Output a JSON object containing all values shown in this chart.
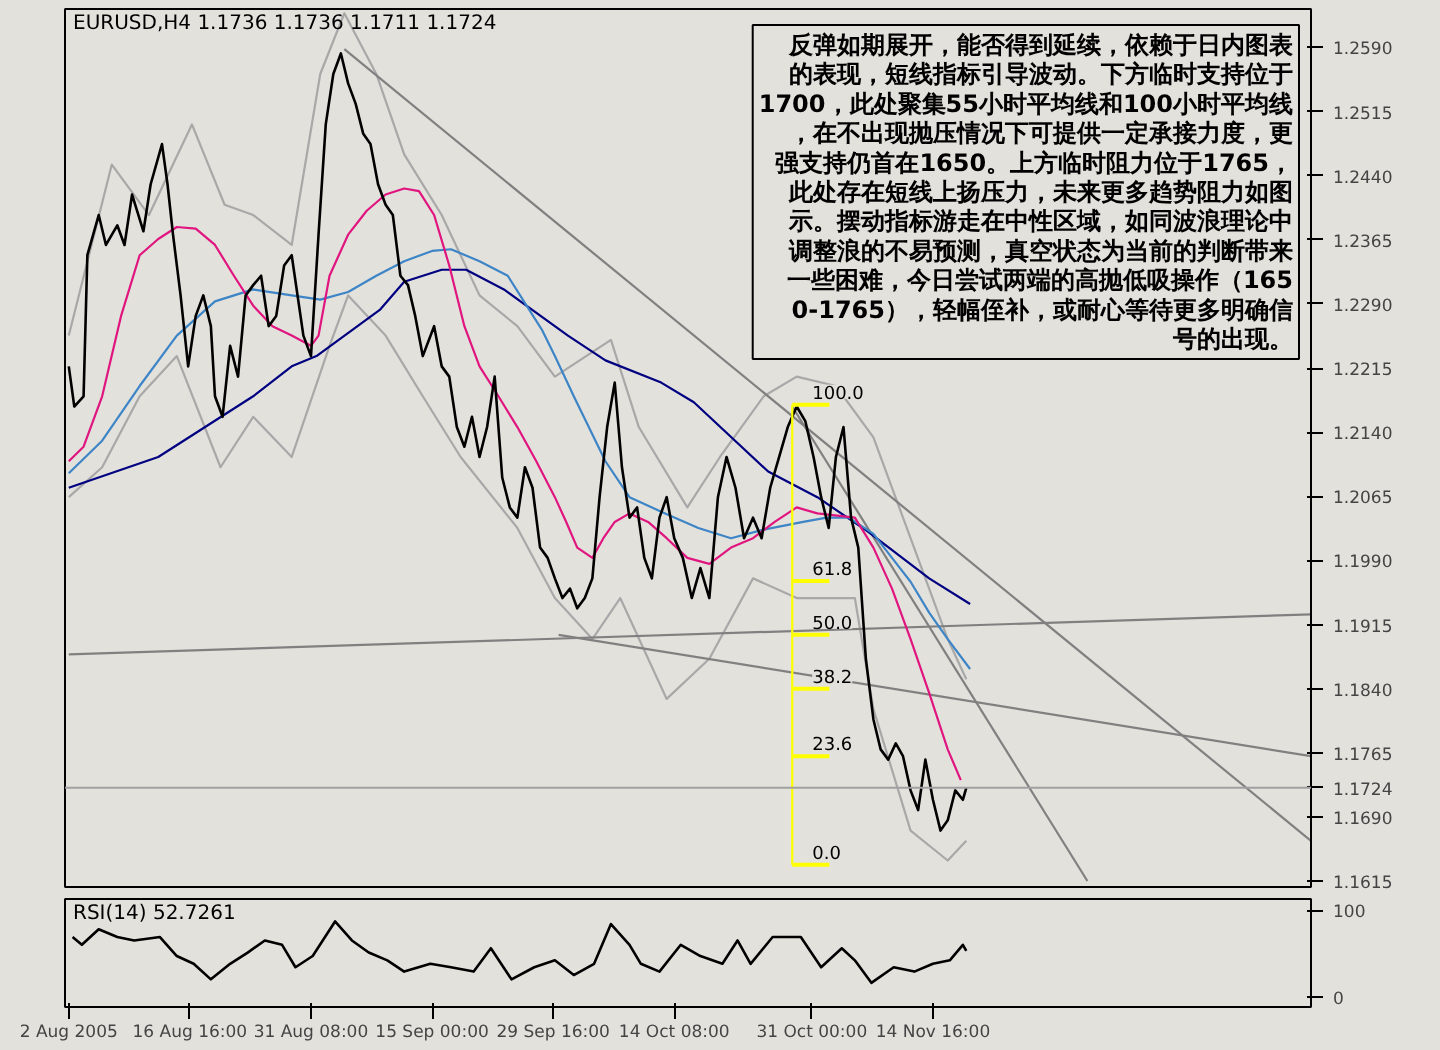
{
  "chart_data": [
    {
      "type": "line",
      "title": "EURUSD,H4  1.1736 1.1736 1.1711 1.1724",
      "xlim": [
        "2005-08-01T13:00",
        "2005-12-30T11:00"
      ],
      "ylim": [
        1.1608,
        1.2635
      ],
      "yticks": [
        {
          "value": 1.259,
          "label": "1.2590"
        },
        {
          "value": 1.2515,
          "label": "1.2515"
        },
        {
          "value": 1.244,
          "label": "1.2440"
        },
        {
          "value": 1.2365,
          "label": "1.2365"
        },
        {
          "value": 1.229,
          "label": "1.2290"
        },
        {
          "value": 1.2215,
          "label": "1.2215"
        },
        {
          "value": 1.214,
          "label": "1.2140"
        },
        {
          "value": 1.2065,
          "label": "1.2065"
        },
        {
          "value": 1.199,
          "label": "1.1990"
        },
        {
          "value": 1.1915,
          "label": "1.1915"
        },
        {
          "value": 1.184,
          "label": "1.1840"
        },
        {
          "value": 1.1765,
          "label": "1.1765"
        },
        {
          "value": 1.169,
          "label": "1.1690"
        },
        {
          "value": 1.1615,
          "label": "1.1615"
        }
      ],
      "ref_lines": [
        {
          "axis": "y",
          "value": 1.1724,
          "label": "1.1724",
          "color": "#a0a0a0"
        }
      ],
      "series": [
        {
          "color": "#a8a8a8",
          "x": [
            "2005-08-02T00:00",
            "2005-08-07T05:00",
            "2005-08-11T17:00",
            "2005-08-16T22:00",
            "2005-08-20T21:00",
            "2005-08-24T08:00",
            "2005-08-29T00:00",
            "2005-09-01T11:00",
            "2005-09-04T09:00",
            "2005-09-08T06:00",
            "2005-09-11T15:00",
            "2005-09-16T04:00",
            "2005-09-20T18:00",
            "2005-09-25T08:00",
            "2005-09-29T21:00",
            "2005-10-06T16:00",
            "2005-10-10T01:00",
            "2005-10-15T22:00",
            "2005-10-19T21:00",
            "2005-10-25T04:00",
            "2005-10-29T04:00",
            "2005-11-02T22:00",
            "2005-11-07T11:00",
            "2005-11-11T23:00",
            "2005-11-16T11:00",
            "2005-11-18T17:00"
          ],
          "values": [
            1.2253,
            1.2453,
            1.2394,
            1.25,
            1.2406,
            1.2394,
            1.2359,
            1.2559,
            1.263,
            1.2559,
            1.2465,
            1.2394,
            1.23,
            1.2264,
            1.2205,
            1.2248,
            1.2146,
            1.2052,
            1.2111,
            1.2182,
            1.2205,
            1.2194,
            1.2134,
            1.2016,
            1.1898,
            1.1851
          ]
        },
        {
          "color": "#a8a8a8",
          "x": [
            "2005-08-02T00:00",
            "2005-08-06T01:00",
            "2005-08-10T14:00",
            "2005-08-15T02:00",
            "2005-08-20T09:00",
            "2005-08-24T08:00",
            "2005-08-29T00:00",
            "2005-09-02T14:00",
            "2005-09-04T20:00",
            "2005-09-09T09:00",
            "2005-09-13T21:00",
            "2005-09-18T11:00",
            "2005-09-25T08:00",
            "2005-09-29T21:00",
            "2005-10-04T10:00",
            "2005-10-07T19:00",
            "2005-10-13T10:00",
            "2005-10-18T14:00",
            "2005-10-23T21:00",
            "2005-10-29T04:00",
            "2005-11-05T05:00",
            "2005-11-07T11:00",
            "2005-11-11T23:00",
            "2005-11-16T11:00",
            "2005-11-18T17:00"
          ],
          "values": [
            1.2064,
            1.2099,
            1.2182,
            1.2229,
            1.2099,
            1.2158,
            1.2111,
            1.2241,
            1.23,
            1.2253,
            1.2182,
            1.2111,
            1.2028,
            1.1946,
            1.1898,
            1.1946,
            1.1828,
            1.1875,
            1.1969,
            1.1946,
            1.1946,
            1.1816,
            1.1674,
            1.1639,
            1.1662
          ]
        },
        {
          "color": "#808080",
          "x": [
            "2005-09-04T09:00",
            "2005-12-30T11:00"
          ],
          "values": [
            1.2588,
            1.1662
          ]
        },
        {
          "color": "#808080",
          "x": [
            "2005-10-28T15:00",
            "2005-12-03T09:00"
          ],
          "values": [
            1.217,
            1.1615
          ]
        },
        {
          "color": "#808080",
          "x": [
            "2005-09-30T08:00",
            "2005-12-30T11:00"
          ],
          "values": [
            1.1903,
            1.1761
          ]
        },
        {
          "color": "#808080",
          "x": [
            "2005-08-02T00:00",
            "2005-12-30T11:00"
          ],
          "values": [
            1.188,
            1.1927
          ]
        },
        {
          "color": "#000080",
          "x": [
            "2005-08-02T00:00",
            "2005-08-12T20:00",
            "2005-08-24T08:00",
            "2005-08-29T00:00",
            "2005-09-01T00:00",
            "2005-09-08T16:00",
            "2005-09-11T15:00",
            "2005-09-16T04:00",
            "2005-09-19T03:00",
            "2005-09-23T17:00",
            "2005-10-01T11:00",
            "2005-10-06T00:00",
            "2005-10-12T18:00",
            "2005-10-16T17:00",
            "2005-10-25T17:00",
            "2005-10-31T16:00",
            "2005-11-06T18:00",
            "2005-11-14T05:00",
            "2005-11-19T04:00"
          ],
          "values": [
            1.2075,
            1.2111,
            1.2182,
            1.2217,
            1.2229,
            1.2283,
            1.2316,
            1.233,
            1.233,
            1.2307,
            1.2253,
            1.2224,
            1.2198,
            1.2175,
            1.2094,
            1.2064,
            1.2024,
            1.1969,
            1.1939
          ]
        },
        {
          "color": "#3d85c6",
          "x": [
            "2005-08-02T00:00",
            "2005-08-06T01:00",
            "2005-08-10T14:00",
            "2005-08-15T02:00",
            "2005-08-19T17:00",
            "2005-08-24T08:00",
            "2005-08-29T00:00",
            "2005-09-01T11:00",
            "2005-09-04T20:00",
            "2005-09-08T06:00",
            "2005-09-11T15:00",
            "2005-09-15T00:00",
            "2005-09-17T07:00",
            "2005-09-20T18:00",
            "2005-09-24T04:00",
            "2005-09-28T07:00",
            "2005-09-29T21:00",
            "2005-10-02T04:00",
            "2005-10-06T00:00",
            "2005-10-08T22:00",
            "2005-10-12T18:00",
            "2005-10-17T06:00",
            "2005-10-21T05:00",
            "2005-10-25T04:00",
            "2005-10-29T23:00",
            "2005-11-01T19:00",
            "2005-11-04T12:00",
            "2005-11-07T11:00",
            "2005-11-09T17:00",
            "2005-11-11T23:00",
            "2005-11-14T05:00",
            "2005-11-16T11:00",
            "2005-11-19T04:00"
          ],
          "values": [
            1.2092,
            1.213,
            1.2194,
            1.2253,
            1.2293,
            1.2307,
            1.23,
            1.2295,
            1.2304,
            1.2323,
            1.234,
            1.2352,
            1.2354,
            1.234,
            1.2323,
            1.226,
            1.2229,
            1.2182,
            1.2106,
            1.2064,
            1.2047,
            1.2028,
            1.2016,
            1.2026,
            1.2035,
            1.204,
            1.204,
            1.2021,
            1.1993,
            1.1965,
            1.1929,
            1.1898,
            1.1863
          ]
        },
        {
          "color": "#e0157f",
          "x": [
            "2005-08-02T00:00",
            "2005-08-03T19:00",
            "2005-08-06T01:00",
            "2005-08-08T08:00",
            "2005-08-10T14:00",
            "2005-08-12T20:00",
            "2005-08-15T02:00",
            "2005-08-17T09:00",
            "2005-08-19T17:00",
            "2005-08-22T00:00",
            "2005-08-24T08:00",
            "2005-08-26T16:00",
            "2005-08-29T00:00",
            "2005-08-31T08:00",
            "2005-09-01T06:00",
            "2005-09-02T14:00",
            "2005-09-04T20:00",
            "2005-09-07T02:00",
            "2005-09-09T09:00",
            "2005-09-11T15:00",
            "2005-09-13T10:00",
            "2005-09-15T06:00",
            "2005-09-17T02:00",
            "2005-09-18T22:00",
            "2005-09-20T18:00",
            "2005-09-23T01:00",
            "2005-09-25T08:00",
            "2005-09-27T15:00",
            "2005-09-29T21:00",
            "2005-10-01T06:00",
            "2005-10-02T14:00",
            "2005-10-04T10:00",
            "2005-10-05T18:00",
            "2005-10-07T03:00",
            "2005-10-08T22:00",
            "2005-10-11T04:00",
            "2005-10-13T10:00",
            "2005-10-15T22:00",
            "2005-10-18T14:00",
            "2005-10-21T05:00",
            "2005-10-23T21:00",
            "2005-10-26T12:00",
            "2005-10-29T04:00",
            "2005-10-31T16:00",
            "2005-11-05T05:00",
            "2005-11-07T11:00",
            "2005-11-09T17:00",
            "2005-11-11T23:00",
            "2005-11-14T05:00",
            "2005-11-16T11:00",
            "2005-11-18T01:00"
          ],
          "values": [
            1.2106,
            1.2123,
            1.2182,
            1.2276,
            1.2347,
            1.2366,
            1.238,
            1.2378,
            1.2359,
            1.2323,
            1.2288,
            1.2264,
            1.2253,
            1.2241,
            1.2253,
            1.2323,
            1.2371,
            1.2399,
            1.2418,
            1.2425,
            1.2422,
            1.2394,
            1.2335,
            1.2264,
            1.2217,
            1.2182,
            1.2146,
            1.2106,
            1.2064,
            1.2035,
            1.2005,
            1.1993,
            1.2016,
            1.2035,
            1.2045,
            1.2035,
            1.2016,
            1.1993,
            1.1986,
            1.2005,
            1.2016,
            1.2035,
            1.2052,
            1.2045,
            1.204,
            1.2005,
            1.1957,
            1.1898,
            1.1835,
            1.1769,
            1.1733
          ]
        },
        {
          "color": "#000000",
          "x": [
            "2005-08-02T00:00",
            "2005-08-02T16:00",
            "2005-08-03T19:00",
            "2005-08-04T06:00",
            "2005-08-05T15:00",
            "2005-08-06T12:00",
            "2005-08-07T21:00",
            "2005-08-08T18:00",
            "2005-08-09T16:00",
            "2005-08-11T01:00",
            "2005-08-11T22:00",
            "2005-08-13T07:00",
            "2005-08-13T23:00",
            "2005-08-14T15:00",
            "2005-08-15T13:00",
            "2005-08-16T11:00",
            "2005-08-17T09:00",
            "2005-08-18T07:00",
            "2005-08-19T05:00",
            "2005-08-19T17:00",
            "2005-08-20T15:00",
            "2005-08-21T13:00",
            "2005-08-22T12:00",
            "2005-08-23T10:00",
            "2005-08-24T08:00",
            "2005-08-25T07:00",
            "2005-08-26T05:00",
            "2005-08-27T03:00",
            "2005-08-28T02:00",
            "2005-08-29T00:00",
            "2005-08-30T10:00",
            "2005-08-31T08:00",
            "2005-09-01T06:00",
            "2005-09-02T03:00",
            "2005-09-03T01:00",
            "2005-09-03T23:00",
            "2005-09-04T20:00",
            "2005-09-05T18:00",
            "2005-09-06T16:00",
            "2005-09-07T13:00",
            "2005-09-08T11:00",
            "2005-09-09T09:00",
            "2005-09-10T06:00",
            "2005-09-11T04:00",
            "2005-09-12T02:00",
            "2005-09-12T23:00",
            "2005-09-13T21:00",
            "2005-09-15T06:00",
            "2005-09-16T04:00",
            "2005-09-17T02:00",
            "2005-09-18T00:00",
            "2005-09-18T22:00",
            "2005-09-19T20:00",
            "2005-09-20T18:00",
            "2005-09-21T16:00",
            "2005-09-22T14:00",
            "2005-09-23T12:00",
            "2005-09-24T10:00",
            "2005-09-25T08:00",
            "2005-09-26T06:00",
            "2005-09-27T04:00",
            "2005-09-28T02:00",
            "2005-09-29T00:00",
            "2005-09-29T21:00",
            "2005-09-30T19:00",
            "2005-10-01T17:00",
            "2005-10-02T14:00",
            "2005-10-03T12:00",
            "2005-10-04T10:00",
            "2005-10-05T07:00",
            "2005-10-06T05:00",
            "2005-10-07T03:00",
            "2005-10-08T00:00",
            "2005-10-08T22:00",
            "2005-10-09T20:00",
            "2005-10-10T17:00",
            "2005-10-11T15:00",
            "2005-10-12T13:00",
            "2005-10-13T10:00",
            "2005-10-14T08:00",
            "2005-10-15T09:00",
            "2005-10-16T11:00",
            "2005-10-17T12:00",
            "2005-10-18T14:00",
            "2005-10-19T15:00",
            "2005-10-20T16:00",
            "2005-10-21T18:00",
            "2005-10-22T19:00",
            "2005-10-23T21:00",
            "2005-10-24T22:00",
            "2005-10-25T23:00",
            "2005-10-27T01:00",
            "2005-10-28T02:00",
            "2005-10-29T04:00",
            "2005-10-30T05:00",
            "2005-10-31T05:00",
            "2005-11-01T03:00",
            "2005-11-02T01:00",
            "2005-11-02T22:00",
            "2005-11-03T20:00",
            "2005-11-04T18:00",
            "2005-11-05T15:00",
            "2005-11-06T13:00",
            "2005-11-07T11:00",
            "2005-11-08T08:00",
            "2005-11-09T06:00",
            "2005-11-10T04:00",
            "2005-11-11T01:00",
            "2005-11-11T23:00",
            "2005-11-12T21:00",
            "2005-11-13T18:00",
            "2005-11-14T16:00",
            "2005-11-15T14:00",
            "2005-11-16T11:00",
            "2005-11-17T09:00",
            "2005-11-18T07:00",
            "2005-11-18T17:00"
          ],
          "values": [
            1.2217,
            1.217,
            1.2182,
            1.2347,
            1.2394,
            1.2359,
            1.2382,
            1.2359,
            1.2418,
            1.2375,
            1.243,
            1.2477,
            1.243,
            1.2371,
            1.23,
            1.2217,
            1.2276,
            1.23,
            1.2264,
            1.2182,
            1.2158,
            1.2241,
            1.2205,
            1.23,
            1.2312,
            1.2323,
            1.2264,
            1.2276,
            1.2335,
            1.2347,
            1.2253,
            1.2229,
            1.2371,
            1.25,
            1.2559,
            1.2583,
            1.2548,
            1.2524,
            1.2489,
            1.2477,
            1.243,
            1.2406,
            1.2394,
            1.2323,
            1.2312,
            1.2276,
            1.2229,
            1.2264,
            1.2217,
            1.2205,
            1.2146,
            1.2123,
            1.2158,
            1.2111,
            1.2146,
            1.2205,
            1.2087,
            1.2052,
            1.204,
            1.2099,
            1.2075,
            1.2005,
            1.1993,
            1.1969,
            1.1946,
            1.1957,
            1.1934,
            1.1946,
            1.1969,
            1.2064,
            1.2146,
            1.2198,
            1.2099,
            1.204,
            1.2052,
            1.1993,
            1.1969,
            1.204,
            1.2064,
            1.2016,
            1.1993,
            1.1946,
            1.1981,
            1.1946,
            1.2064,
            1.2111,
            1.2075,
            1.2016,
            1.204,
            1.2016,
            1.2075,
            1.2111,
            1.2146,
            1.217,
            1.2153,
            1.2111,
            1.2064,
            1.2028,
            1.2111,
            1.2146,
            1.204,
            1.2005,
            1.1875,
            1.1804,
            1.1769,
            1.1757,
            1.1776,
            1.1761,
            1.1721,
            1.1698,
            1.1757,
            1.171,
            1.1674,
            1.1686,
            1.1721,
            1.171,
            1.1724
          ]
        },
        {
          "color": "#ffff00",
          "x": [
            "2005-10-28T15:00",
            "2005-10-28T15:00"
          ],
          "values": [
            1.1634,
            1.2172
          ]
        }
      ],
      "annotations": [
        {
          "text": "100.0",
          "x": "2005-10-28T15:00",
          "y": 1.2172
        },
        {
          "text": "61.8",
          "x": "2005-10-28T15:00",
          "y": 1.1966
        },
        {
          "text": "50.0",
          "x": "2005-10-28T15:00",
          "y": 1.1903
        },
        {
          "text": "38.2",
          "x": "2005-10-28T15:00",
          "y": 1.184
        },
        {
          "text": "23.6",
          "x": "2005-10-28T15:00",
          "y": 1.1761
        },
        {
          "text": "0.0",
          "x": "2005-10-28T15:00",
          "y": 1.1634
        },
        "反弹如期展开，能否得到延续，依赖于日内图表的表现，短线指标引导波动。下方临时支持位于1700，此处聚集55小时平均线和100小时平均线，在不出现抛压情况下可提供一定承接力度，更强支持仍首在1650。上方临时阻力位于1765，此处存在短线上扬压力，未来更多趋势阻力如图示。摆动指标游走在中性区域，如同波浪理论中调整浪的不易预测，真空状态为当前的判断带来一些困难，今日尝试两端的高抛低吸操作（1650-1765），轻幅侄补，或耐心等待更多明确信号的出现。"
      ]
    },
    {
      "type": "line",
      "title": "RSI(14) 52.7261",
      "xlim": [
        "2005-08-01T13:00",
        "2005-12-30T11:00"
      ],
      "ylim": [
        -12,
        113
      ],
      "xticks": [
        {
          "value": "2005-08-02T00:00",
          "label": "2 Aug 2005"
        },
        {
          "value": "2005-08-16T16:00",
          "label": "16 Aug 16:00"
        },
        {
          "value": "2005-08-31T08:00",
          "label": "31 Aug 08:00"
        },
        {
          "value": "2005-09-15T00:00",
          "label": "15 Sep 00:00"
        },
        {
          "value": "2005-09-29T16:00",
          "label": "29 Sep 16:00"
        },
        {
          "value": "2005-10-14T08:00",
          "label": "14 Oct 08:00"
        },
        {
          "value": "2005-10-31T00:00",
          "label": "31 Oct 00:00"
        },
        {
          "value": "2005-11-14T16:00",
          "label": "14 Nov 16:00"
        }
      ],
      "yticks": [
        0,
        100
      ],
      "series": [
        {
          "color": "#000000",
          "x": [
            "2005-08-02T11:00",
            "2005-08-03T14:00",
            "2005-08-05T15:00",
            "2005-08-07T21:00",
            "2005-08-09T22:00",
            "2005-08-13T01:00",
            "2005-08-15T02:00",
            "2005-08-17T03:00",
            "2005-08-19T05:00",
            "2005-08-21T13:00",
            "2005-08-23T16:00",
            "2005-08-25T18:00",
            "2005-08-27T20:00",
            "2005-08-29T11:00",
            "2005-08-31T13:00",
            "2005-09-03T06:00",
            "2005-09-05T07:00",
            "2005-09-07T08:00",
            "2005-09-09T14:00",
            "2005-09-11T15:00",
            "2005-09-14T19:00",
            "2005-09-17T07:00",
            "2005-09-20T01:00",
            "2005-09-22T03:00",
            "2005-09-24T15:00",
            "2005-09-27T09:00",
            "2005-09-29T21:00",
            "2005-10-02T04:00",
            "2005-10-04T15:00",
            "2005-10-06T16:00",
            "2005-10-08T22:00",
            "2005-10-10T07:00",
            "2005-10-12T13:00",
            "2005-10-15T03:00",
            "2005-10-17T12:00",
            "2005-10-20T04:00",
            "2005-10-22T00:00",
            "2005-10-23T14:00",
            "2005-10-26T06:00",
            "2005-10-29T16:00",
            "2005-11-01T03:00",
            "2005-11-03T15:00",
            "2005-11-05T05:00",
            "2005-11-07T05:00",
            "2005-11-09T22:00",
            "2005-11-12T10:00",
            "2005-11-14T16:00",
            "2005-11-16T17:00",
            "2005-11-18T07:00",
            "2005-11-18T17:00"
          ],
          "values": [
            69,
            60,
            78,
            69,
            65,
            69,
            47,
            38,
            20,
            38,
            51,
            65,
            60,
            34,
            47,
            87,
            65,
            51,
            42,
            29,
            38,
            34,
            29,
            56,
            20,
            34,
            42,
            25,
            38,
            84,
            60,
            38,
            29,
            60,
            47,
            38,
            65,
            38,
            69,
            69,
            34,
            56,
            42,
            16,
            34,
            29,
            38,
            42,
            60,
            53
          ]
        }
      ]
    }
  ]
}
